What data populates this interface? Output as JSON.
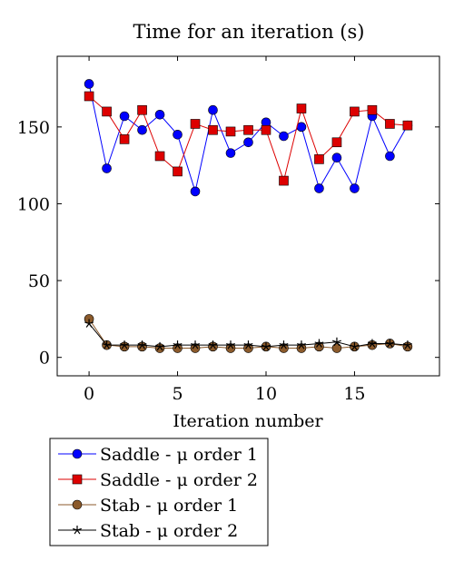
{
  "chart_data": {
    "type": "line",
    "title": "Time for an iteration (s)",
    "xlabel": "Iteration number",
    "ylabel": "",
    "xlim": [
      -1.8,
      19.8
    ],
    "ylim": [
      -12,
      196
    ],
    "x_ticks": [
      0,
      5,
      10,
      15
    ],
    "y_ticks": [
      0,
      50,
      100,
      150
    ],
    "grid": false,
    "legend_position": "bottom-left (outside, below plot)",
    "x": [
      0,
      1,
      2,
      3,
      4,
      5,
      6,
      7,
      8,
      9,
      10,
      11,
      12,
      13,
      14,
      15,
      16,
      17,
      18
    ],
    "series": [
      {
        "name": "Saddle - μ order 1",
        "color": "#0000ff",
        "marker": "circle",
        "values": [
          178,
          123,
          157,
          148,
          158,
          145,
          108,
          161,
          133,
          140,
          153,
          144,
          150,
          110,
          130,
          110,
          157,
          131,
          151
        ]
      },
      {
        "name": "Saddle - μ order 2",
        "color": "#dd0000",
        "marker": "square",
        "values": [
          170,
          160,
          142,
          161,
          131,
          121,
          152,
          148,
          147,
          148,
          148,
          115,
          162,
          129,
          140,
          160,
          161,
          152,
          151
        ]
      },
      {
        "name": "Stab - μ order 1",
        "color": "#8b5a2b",
        "marker": "circle",
        "values": [
          25,
          8,
          7,
          7,
          6,
          6,
          6,
          7,
          6,
          6,
          7,
          6,
          6,
          7,
          6,
          7,
          8,
          9,
          7
        ]
      },
      {
        "name": "Stab - μ order 2",
        "color": "#000000",
        "marker": "star",
        "values": [
          22,
          8,
          8,
          8,
          7,
          8,
          8,
          8,
          8,
          8,
          7,
          8,
          8,
          9,
          10,
          7,
          9,
          9,
          8
        ]
      }
    ]
  }
}
